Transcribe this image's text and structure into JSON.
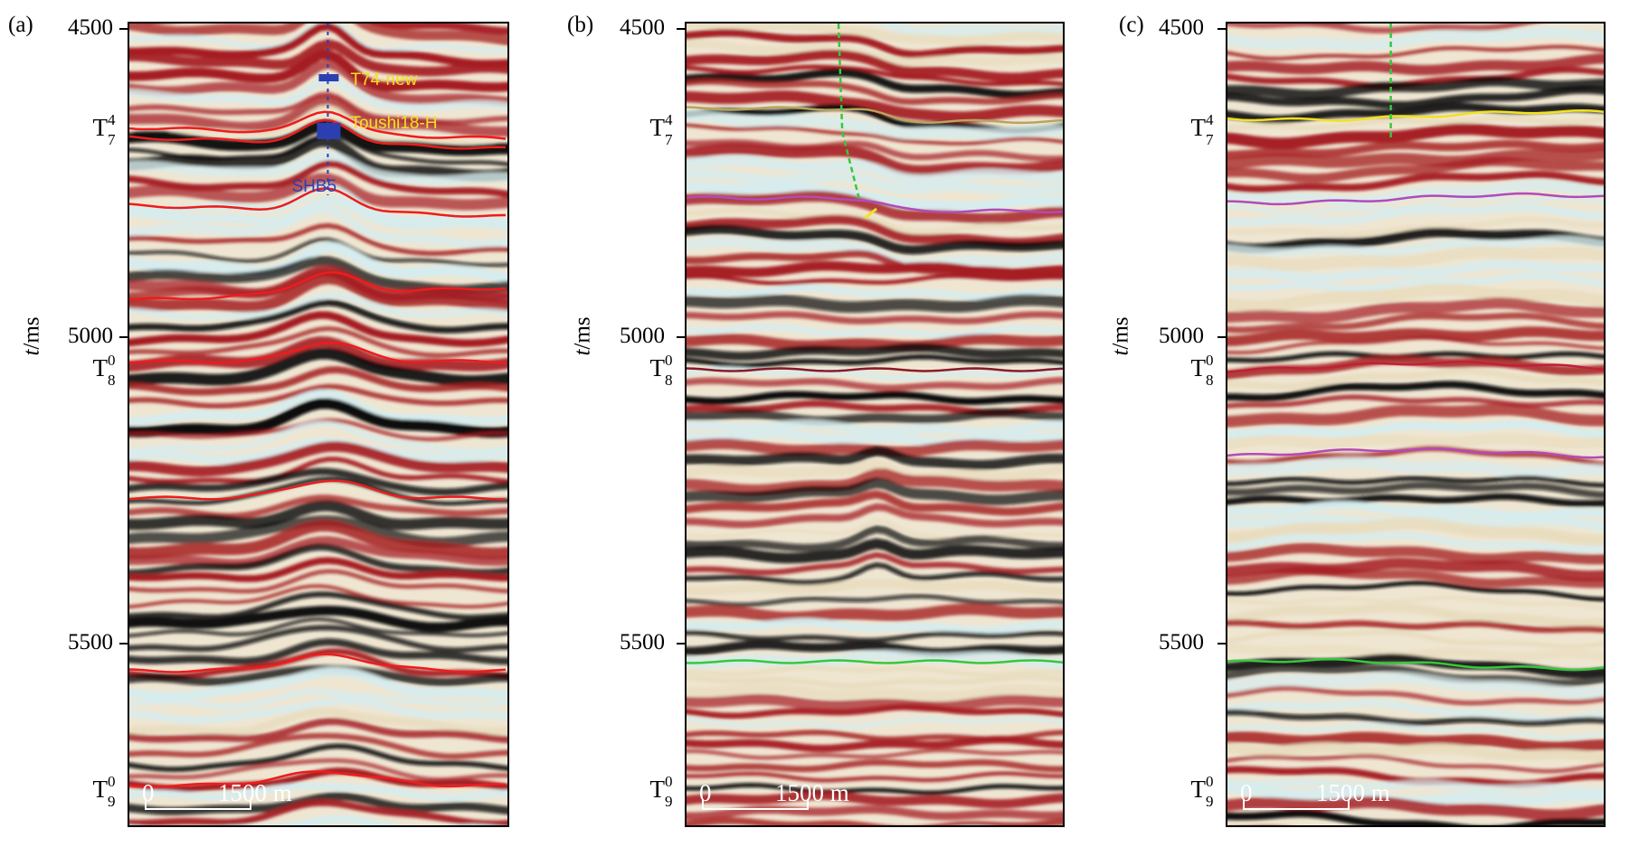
{
  "figure": {
    "y_axis_label": {
      "italic": "t",
      "rest": "/ms"
    },
    "scale_bar": {
      "start": "0",
      "end": "1500 m"
    },
    "colors": {
      "red": "#a51e22",
      "black": "#0b0b0b",
      "cyan": "#d6ecee",
      "beige": "#e9ddbf",
      "horizon_red": "#ee1c1c",
      "purple": "#b24ab8",
      "green": "#34c93a",
      "yellow": "#f2e21c",
      "well_blue": "#2b3fb0"
    },
    "panels": [
      {
        "label": "(a)",
        "ticks": [
          "4500",
          "5000",
          "5500"
        ],
        "horizons": [
          {
            "base": "T",
            "sub": "7",
            "sup": "4"
          },
          {
            "base": "T",
            "sub": "8",
            "sup": "0"
          },
          {
            "base": "T",
            "sub": "9",
            "sup": "0"
          }
        ],
        "annotations": [
          "T74-new",
          "Toushi18-H",
          "SHB5"
        ]
      },
      {
        "label": "(b)",
        "ticks": [
          "4500",
          "5000",
          "5500"
        ],
        "horizons": [
          {
            "base": "T",
            "sub": "7",
            "sup": "4"
          },
          {
            "base": "T",
            "sub": "8",
            "sup": "0"
          },
          {
            "base": "T",
            "sub": "9",
            "sup": "0"
          }
        ]
      },
      {
        "label": "(c)",
        "ticks": [
          "4500",
          "5000",
          "5500"
        ],
        "horizons": [
          {
            "base": "T",
            "sub": "7",
            "sup": "4"
          },
          {
            "base": "T",
            "sub": "8",
            "sup": "0"
          },
          {
            "base": "T",
            "sub": "9",
            "sup": "0"
          }
        ]
      }
    ]
  }
}
